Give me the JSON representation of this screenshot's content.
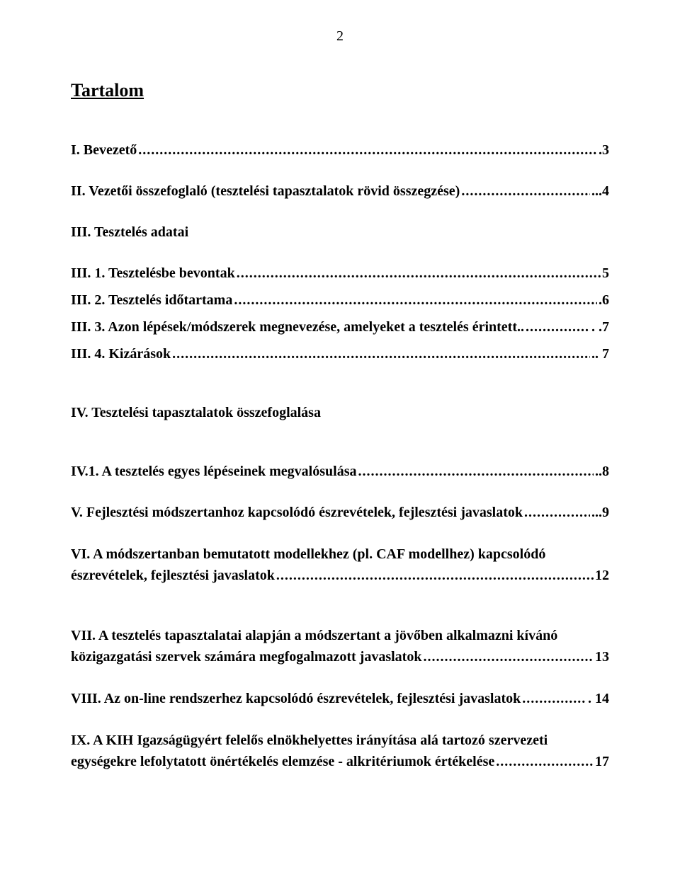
{
  "page_number": "2",
  "title": "Tartalom",
  "entries": {
    "i": {
      "text": "I. Bevezető",
      "page": ".3"
    },
    "ii": {
      "text": "II. Vezetői összefoglaló (tesztelési tapasztalatok rövid összegzése)",
      "page": "...4"
    },
    "iii": {
      "text": "III. Tesztelés adatai"
    },
    "iii1": {
      "text": "III. 1. Tesztelésbe bevontak",
      "page": "5"
    },
    "iii2": {
      "text": "III. 2. Tesztelés időtartama",
      "page": ".6"
    },
    "iii3": {
      "text": "III. 3. Azon lépések/módszerek megnevezése, amelyeket a tesztelés érintett..",
      "page": ". .7"
    },
    "iii4": {
      "text": "III. 4. Kizárások",
      "page": ".. 7"
    },
    "iv": {
      "text": "IV. Tesztelési tapasztalatok összefoglalása"
    },
    "iv1": {
      "text": "IV.1. A tesztelés egyes lépéseinek megvalósulása",
      "page": "..8"
    },
    "v": {
      "text": "V. Fejlesztési módszertanhoz kapcsolódó észrevételek, fejlesztési javaslatok",
      "page": "...9"
    },
    "vi": {
      "text1": "VI. A módszertanban bemutatott modellekhez (pl. CAF modellhez) kapcsolódó",
      "text2": "észrevételek, fejlesztési javaslatok",
      "page": "12"
    },
    "vii": {
      "text1": "VII. A tesztelés tapasztalatai alapján a módszertant a jövőben alkalmazni kívánó",
      "text2": "közigazgatási szervek számára megfogalmazott javaslatok",
      "page": " 13"
    },
    "viii": {
      "text": "VIII. Az on-line rendszerhez kapcsolódó észrevételek, fejlesztési javaslatok",
      "page": ". 14"
    },
    "ix": {
      "text1": "IX. A KIH Igazságügyért felelős elnökhelyettes irányítása alá tartozó szervezeti",
      "text2": "egységekre lefolytatott önértékelés elemzése - alkritériumok értékelése",
      "page": " 17"
    }
  }
}
